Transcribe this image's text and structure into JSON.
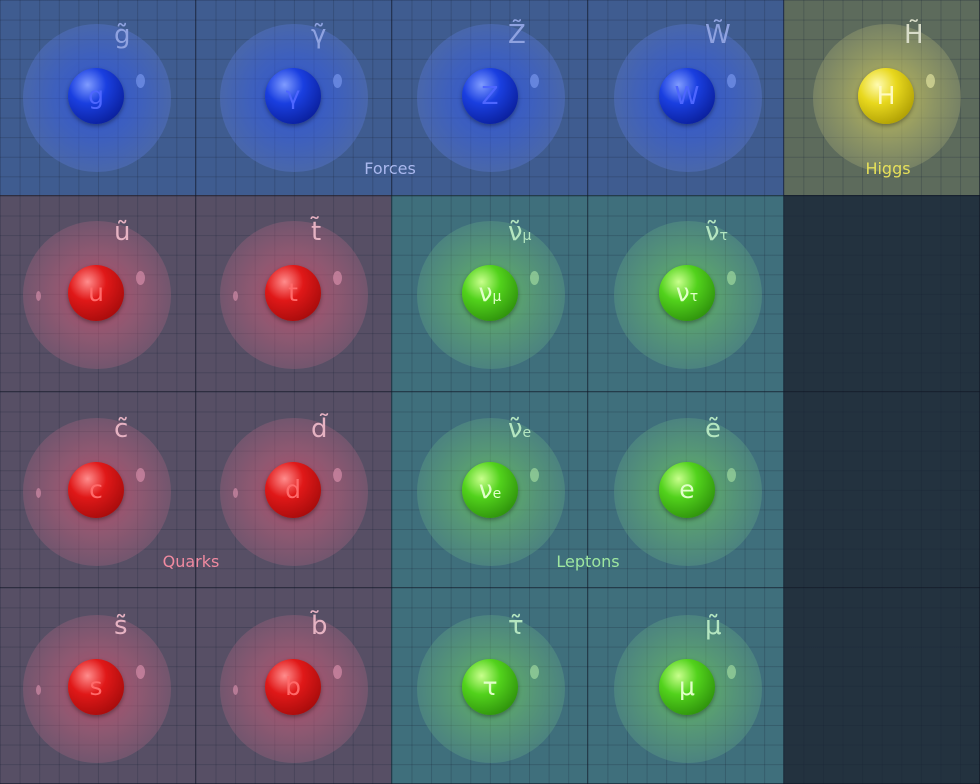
{
  "groups": {
    "forces": "Forces",
    "higgs": "Higgs",
    "quarks": "Quarks",
    "leptons": "Leptons"
  },
  "colors": {
    "forces": "#3f5c90",
    "higgs": "#5d6b5c",
    "quarks": "#574f65",
    "leptons": "#3f6f7c",
    "empty": "#23323f",
    "forces_label": "#aab8ee",
    "higgs_label": "#e6e05a",
    "quarks_label": "#f08aa0",
    "leptons_label": "#9ee6a0"
  },
  "particles": {
    "gluon": {
      "symbol": "g",
      "sub": "",
      "partner": "g̃",
      "partner_sub": ""
    },
    "photon": {
      "symbol": "γ",
      "sub": "",
      "partner": "γ̃",
      "partner_sub": ""
    },
    "z": {
      "symbol": "Z",
      "sub": "",
      "partner": "Z̃",
      "partner_sub": ""
    },
    "w": {
      "symbol": "W",
      "sub": "",
      "partner": "W̃",
      "partner_sub": ""
    },
    "higgs": {
      "symbol": "H",
      "sub": "",
      "partner": "H̃",
      "partner_sub": ""
    },
    "up": {
      "symbol": "u",
      "sub": "",
      "partner": "ũ",
      "partner_sub": ""
    },
    "top": {
      "symbol": "t",
      "sub": "",
      "partner": "t̃",
      "partner_sub": ""
    },
    "nu_mu": {
      "symbol": "ν",
      "sub": "μ",
      "partner": "ν̃",
      "partner_sub": "μ"
    },
    "nu_tau": {
      "symbol": "ν",
      "sub": "τ",
      "partner": "ν̃",
      "partner_sub": "τ"
    },
    "charm": {
      "symbol": "c",
      "sub": "",
      "partner": "c̃",
      "partner_sub": ""
    },
    "down": {
      "symbol": "d",
      "sub": "",
      "partner": "d̃",
      "partner_sub": ""
    },
    "nu_e": {
      "symbol": "ν",
      "sub": "e",
      "partner": "ν̃",
      "partner_sub": "e"
    },
    "electron": {
      "symbol": "e",
      "sub": "",
      "partner": "ẽ",
      "partner_sub": ""
    },
    "strange": {
      "symbol": "s",
      "sub": "",
      "partner": "s̃",
      "partner_sub": ""
    },
    "bottom": {
      "symbol": "b",
      "sub": "",
      "partner": "b̃",
      "partner_sub": ""
    },
    "tau": {
      "symbol": "τ",
      "sub": "",
      "partner": "τ̃",
      "partner_sub": ""
    },
    "muon": {
      "symbol": "μ",
      "sub": "",
      "partner": "μ̃",
      "partner_sub": ""
    }
  }
}
